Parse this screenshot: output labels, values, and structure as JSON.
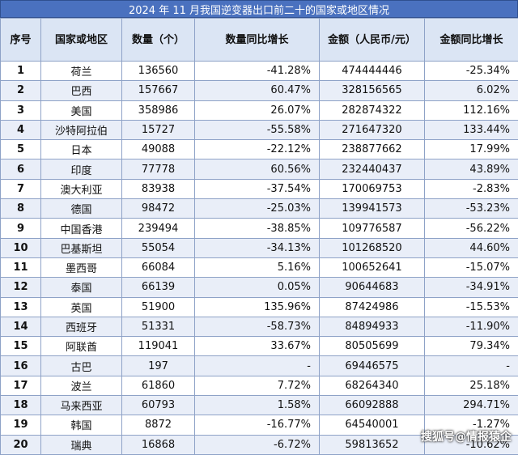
{
  "title": "2024 年 11 月我国逆变器出口前二十的国家或地区情况",
  "headers": [
    "序号",
    "国家或地区",
    "数量（个）",
    "数量同比增长",
    "金额（人民币/元）",
    "金额同比增长"
  ],
  "rows": [
    [
      "1",
      "荷兰",
      "136560",
      "-41.28%",
      "474444446",
      "-25.34%"
    ],
    [
      "2",
      "巴西",
      "157667",
      "60.47%",
      "328156565",
      "6.02%"
    ],
    [
      "3",
      "美国",
      "358986",
      "26.07%",
      "282874322",
      "112.16%"
    ],
    [
      "4",
      "沙特阿拉伯",
      "15727",
      "-55.58%",
      "271647320",
      "133.44%"
    ],
    [
      "5",
      "日本",
      "49088",
      "-22.12%",
      "238877662",
      "17.99%"
    ],
    [
      "6",
      "印度",
      "77778",
      "60.56%",
      "232440437",
      "43.89%"
    ],
    [
      "7",
      "澳大利亚",
      "83938",
      "-37.54%",
      "170069753",
      "-2.83%"
    ],
    [
      "8",
      "德国",
      "98472",
      "-25.03%",
      "139941573",
      "-53.23%"
    ],
    [
      "9",
      "中国香港",
      "239494",
      "-38.85%",
      "109776587",
      "-56.22%"
    ],
    [
      "10",
      "巴基斯坦",
      "55054",
      "-34.13%",
      "101268520",
      "44.60%"
    ],
    [
      "11",
      "墨西哥",
      "66084",
      "5.16%",
      "100652641",
      "-15.07%"
    ],
    [
      "12",
      "泰国",
      "66139",
      "0.05%",
      "90644683",
      "-34.91%"
    ],
    [
      "13",
      "英国",
      "51900",
      "135.96%",
      "87424986",
      "-15.53%"
    ],
    [
      "14",
      "西班牙",
      "51331",
      "-58.73%",
      "84894933",
      "-11.90%"
    ],
    [
      "15",
      "阿联酋",
      "119041",
      "33.67%",
      "80505699",
      "79.34%"
    ],
    [
      "16",
      "古巴",
      "197",
      "-",
      "69446575",
      "-"
    ],
    [
      "17",
      "波兰",
      "61860",
      "7.72%",
      "68264340",
      "25.18%"
    ],
    [
      "18",
      "马来西亚",
      "60793",
      "1.58%",
      "66092888",
      "294.71%"
    ],
    [
      "19",
      "韩国",
      "8872",
      "-16.77%",
      "64540001",
      "-1.27%"
    ],
    [
      "20",
      "瑞典",
      "16868",
      "-6.72%",
      "59813652",
      "-10.62%"
    ]
  ],
  "watermark": "搜狐号@情报猿企"
}
